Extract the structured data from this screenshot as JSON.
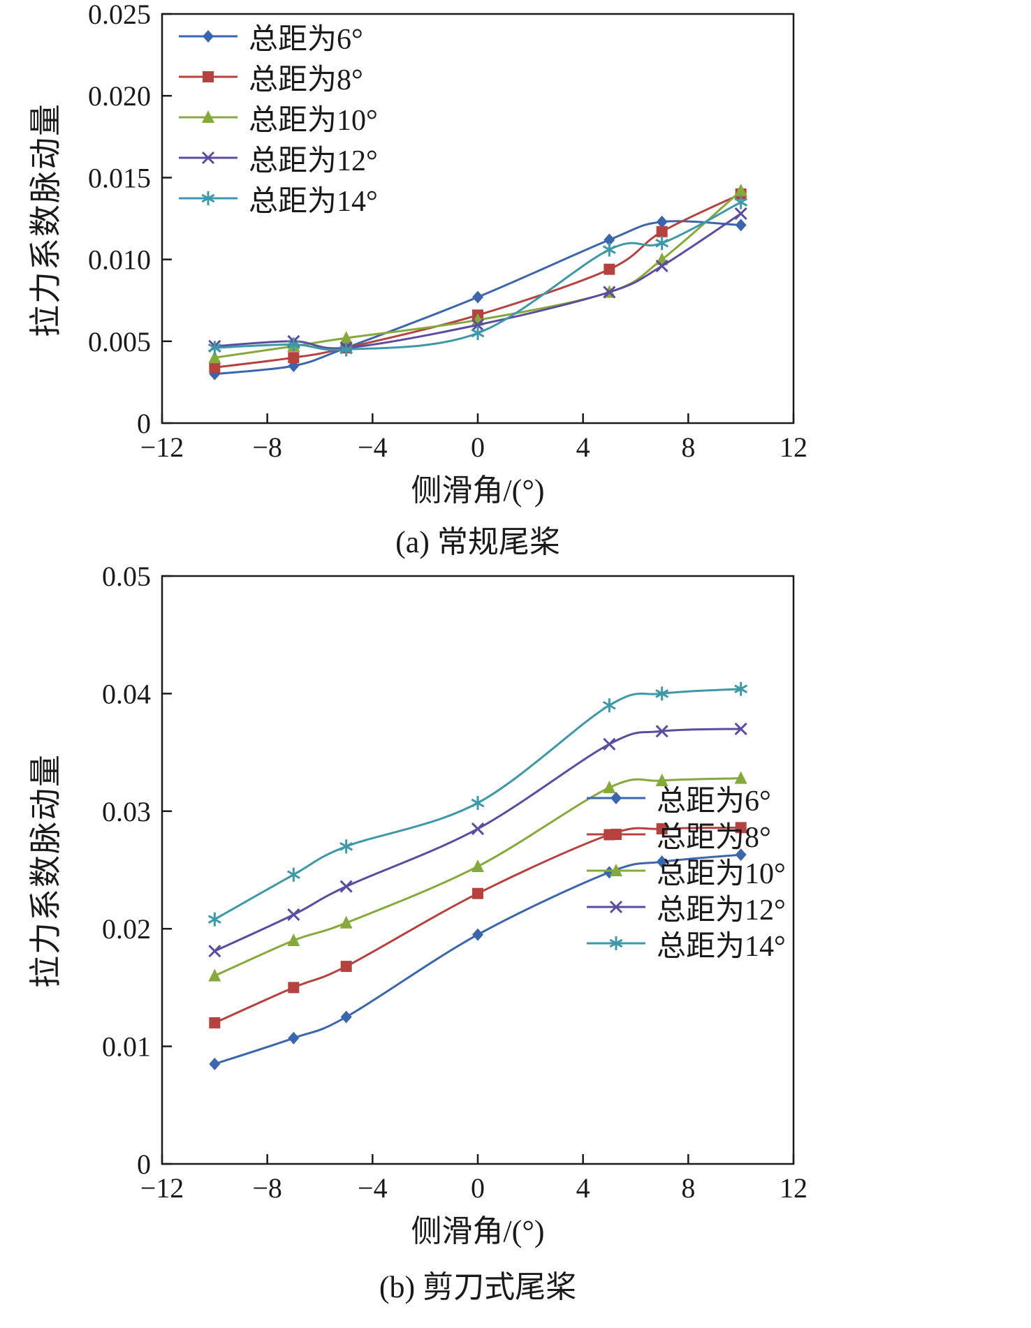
{
  "chart_data": [
    {
      "type": "line",
      "caption": "(a) 常规尾桨",
      "xlabel": "侧滑角/(°)",
      "ylabel": "拉力系数脉动量",
      "xlim": [
        -12,
        12
      ],
      "ylim": [
        0,
        0.025
      ],
      "xticks": [
        -12,
        -8,
        -4,
        0,
        4,
        8,
        12
      ],
      "xtick_labels": [
        "−12",
        "−8",
        "−4",
        "0",
        "4",
        "8",
        "12"
      ],
      "yticks": [
        0,
        0.005,
        0.01,
        0.015,
        0.02,
        0.025
      ],
      "ytick_labels": [
        "0",
        "0.005",
        "0.010",
        "0.015",
        "0.020",
        "0.025"
      ],
      "grid": false,
      "legend_position": "top-left",
      "x": [
        -10,
        -7,
        -5,
        0,
        5,
        7,
        10
      ],
      "series": [
        {
          "label": "总距为6°",
          "color": "#3b66ad",
          "marker": "diamond",
          "values": [
            0.003,
            0.0035,
            0.0046,
            0.0077,
            0.0112,
            0.0123,
            0.0121
          ]
        },
        {
          "label": "总距为8°",
          "color": "#b5423f",
          "marker": "square",
          "values": [
            0.0034,
            0.004,
            0.0046,
            0.0066,
            0.0094,
            0.0117,
            0.014
          ]
        },
        {
          "label": "总距为10°",
          "color": "#86a93c",
          "marker": "triangle",
          "values": [
            0.004,
            0.0047,
            0.0052,
            0.0063,
            0.008,
            0.01,
            0.0142
          ]
        },
        {
          "label": "总距为12°",
          "color": "#5c4b9e",
          "marker": "x",
          "values": [
            0.0047,
            0.005,
            0.0046,
            0.006,
            0.008,
            0.0096,
            0.0128
          ]
        },
        {
          "label": "总距为14°",
          "color": "#3e98a8",
          "marker": "asterisk",
          "values": [
            0.0046,
            0.0048,
            0.0045,
            0.0055,
            0.0106,
            0.011,
            0.0135
          ]
        }
      ]
    },
    {
      "type": "line",
      "caption": "(b) 剪刀式尾桨",
      "xlabel": "侧滑角/(°)",
      "ylabel": "拉力系数脉动量",
      "xlim": [
        -12,
        12
      ],
      "ylim": [
        0,
        0.05
      ],
      "xticks": [
        -12,
        -8,
        -4,
        0,
        4,
        8,
        12
      ],
      "xtick_labels": [
        "−12",
        "−8",
        "−4",
        "0",
        "4",
        "8",
        "12"
      ],
      "yticks": [
        0,
        0.01,
        0.02,
        0.03,
        0.04,
        0.05
      ],
      "ytick_labels": [
        "0",
        "0.01",
        "0.02",
        "0.03",
        "0.04",
        "0.05"
      ],
      "grid": false,
      "legend_position": "bottom-right",
      "x": [
        -10,
        -7,
        -5,
        0,
        5,
        7,
        10
      ],
      "series": [
        {
          "label": "总距为6°",
          "color": "#3b66ad",
          "marker": "diamond",
          "values": [
            0.0085,
            0.0107,
            0.0125,
            0.0195,
            0.0248,
            0.0257,
            0.0263
          ]
        },
        {
          "label": "总距为8°",
          "color": "#b5423f",
          "marker": "square",
          "values": [
            0.012,
            0.015,
            0.0168,
            0.023,
            0.028,
            0.0285,
            0.0286
          ]
        },
        {
          "label": "总距为10°",
          "color": "#86a93c",
          "marker": "triangle",
          "values": [
            0.016,
            0.019,
            0.0205,
            0.0253,
            0.032,
            0.0326,
            0.0328
          ]
        },
        {
          "label": "总距为12°",
          "color": "#5c4b9e",
          "marker": "x",
          "values": [
            0.0181,
            0.0212,
            0.0236,
            0.0285,
            0.0357,
            0.0368,
            0.037
          ]
        },
        {
          "label": "总距为14°",
          "color": "#3e98a8",
          "marker": "asterisk",
          "values": [
            0.0208,
            0.0246,
            0.027,
            0.0307,
            0.039,
            0.04,
            0.0404
          ]
        }
      ]
    }
  ]
}
